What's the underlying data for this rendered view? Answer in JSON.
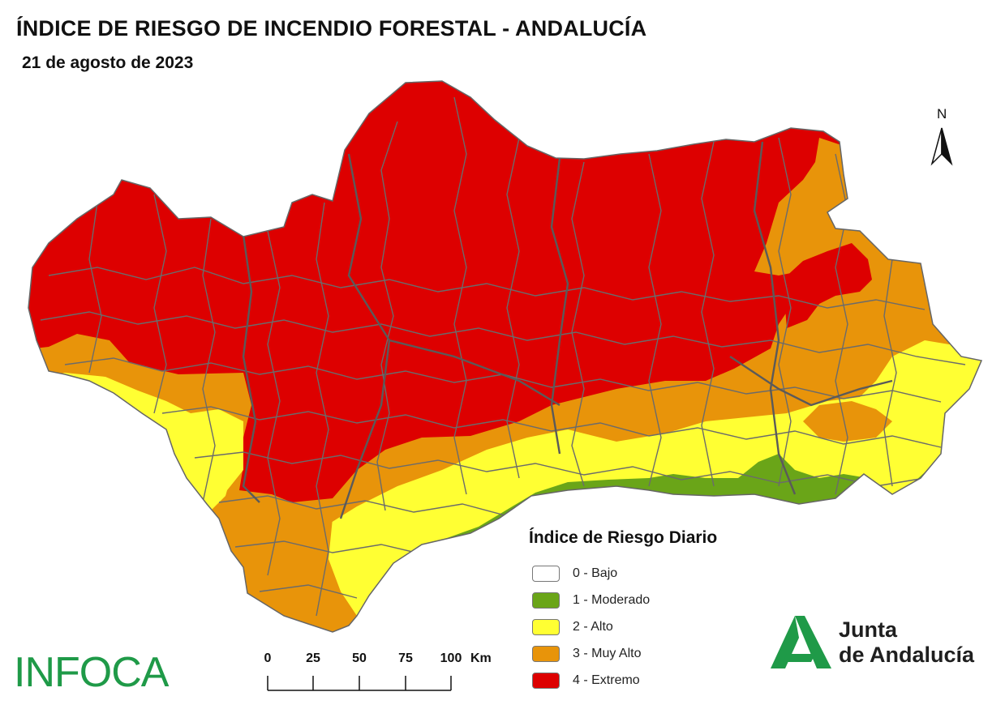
{
  "header": {
    "title": "ÍNDICE DE RIESGO DE INCENDIO FORESTAL - ANDALUCÍA",
    "date": "21 de agosto de 2023"
  },
  "north_arrow": {
    "label": "N"
  },
  "legend": {
    "title": "Índice de Riesgo Diario",
    "items": [
      {
        "label": "0 - Bajo",
        "color": "#ffffff"
      },
      {
        "label": "1 - Moderado",
        "color": "#6aa518"
      },
      {
        "label": "2 - Alto",
        "color": "#ffff33"
      },
      {
        "label": "3 - Muy Alto",
        "color": "#e8940a"
      },
      {
        "label": "4 - Extremo",
        "color": "#dd0000"
      }
    ]
  },
  "scale_bar": {
    "ticks": [
      "0",
      "25",
      "50",
      "75",
      "100"
    ],
    "unit": "Km"
  },
  "logos": {
    "infoca": "INFOCA",
    "junta_line1": "Junta",
    "junta_line2": "de Andalucía"
  },
  "colors": {
    "extremo": "#dd0000",
    "muy_alto": "#e8940a",
    "alto": "#ffff33",
    "moderado": "#6aa518",
    "boundary": "#6b6b6b",
    "brand_green": "#1f9a48"
  }
}
